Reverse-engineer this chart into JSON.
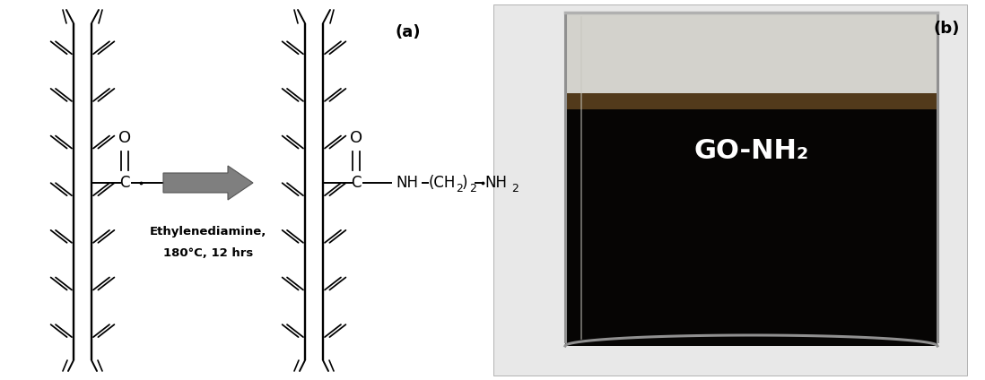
{
  "fig_width": 10.98,
  "fig_height": 4.24,
  "bg_color": "#ffffff",
  "label_a": "(a)",
  "label_b": "(b)",
  "arrow_text_line1": "Ethylenediamine,",
  "arrow_text_line2": "180°C, 12 hrs",
  "go_nh2_label": "GO-NH₂",
  "beaker_bg_dark": "#080808",
  "go_nh2_text_color": "#ffffff",
  "go_nh2_fontsize": 22,
  "label_fontsize": 13,
  "chem_fontsize": 12,
  "arrow_text_fontsize": 9
}
